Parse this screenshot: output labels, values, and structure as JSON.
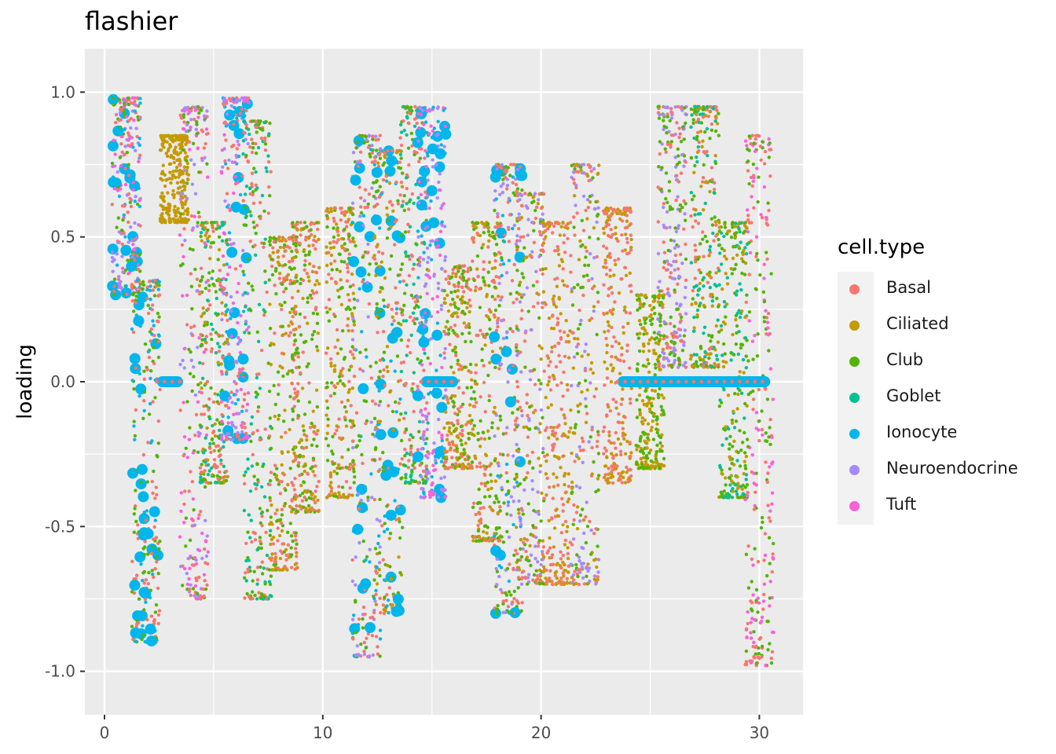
{
  "chart_data": {
    "type": "scatter",
    "title": "flashier",
    "xlabel": "",
    "ylabel": "loading",
    "xlim": [
      -0.9,
      32.0
    ],
    "ylim": [
      -1.15,
      1.15
    ],
    "x_ticks": [
      0,
      10,
      20,
      30
    ],
    "x_tick_labels": [
      "0",
      "10",
      "20",
      "30"
    ],
    "y_ticks": [
      -1.0,
      -0.5,
      0.0,
      0.5,
      1.0
    ],
    "y_tick_labels": [
      "-1.0",
      "-0.5",
      "0.0",
      "0.5",
      "1.0"
    ],
    "grid": true,
    "legend_title": "cell.type",
    "legend_position": "right",
    "series": [
      {
        "name": "Basal",
        "color": "#F8766D"
      },
      {
        "name": "Ciliated",
        "color": "#C49A00"
      },
      {
        "name": "Club",
        "color": "#53B400"
      },
      {
        "name": "Goblet",
        "color": "#00C094"
      },
      {
        "name": "Ionocyte",
        "color": "#00B6EB"
      },
      {
        "name": "Neuroendocrine",
        "color": "#A58AFF"
      },
      {
        "name": "Tuft",
        "color": "#FB61D7"
      }
    ],
    "clusters": [
      {
        "x": 1.0,
        "ymin": 0.3,
        "ymax": 0.98,
        "series": [
          0,
          2,
          4,
          5,
          6
        ]
      },
      {
        "x": 1.9,
        "ymin": -0.9,
        "ymax": 0.35,
        "series": [
          0,
          2,
          4
        ]
      },
      {
        "x": 3.2,
        "ymin": 0.55,
        "ymax": 0.85,
        "series": [
          1
        ]
      },
      {
        "x": 4.1,
        "ymin": -0.75,
        "ymax": 0.95,
        "series": [
          0,
          2,
          5,
          6
        ]
      },
      {
        "x": 5.0,
        "ymin": -0.35,
        "ymax": 0.55,
        "series": [
          0,
          1,
          2,
          3
        ]
      },
      {
        "x": 6.0,
        "ymin": -0.2,
        "ymax": 0.98,
        "series": [
          4,
          5,
          6,
          0
        ]
      },
      {
        "x": 7.0,
        "ymin": -0.75,
        "ymax": 0.9,
        "series": [
          2,
          3,
          0
        ]
      },
      {
        "x": 8.2,
        "ymin": -0.65,
        "ymax": 0.5,
        "series": [
          0,
          2,
          1
        ]
      },
      {
        "x": 9.2,
        "ymin": -0.45,
        "ymax": 0.55,
        "series": [
          2,
          0,
          1
        ]
      },
      {
        "x": 10.8,
        "ymin": -0.4,
        "ymax": 0.6,
        "series": [
          0,
          1,
          2
        ]
      },
      {
        "x": 12.0,
        "ymin": -0.95,
        "ymax": 0.85,
        "series": [
          0,
          2,
          4,
          5
        ]
      },
      {
        "x": 13.0,
        "ymin": -0.8,
        "ymax": 0.8,
        "series": [
          0,
          2,
          4,
          1
        ]
      },
      {
        "x": 14.2,
        "ymin": -0.35,
        "ymax": 0.95,
        "series": [
          2,
          3,
          0
        ]
      },
      {
        "x": 15.0,
        "ymin": -0.4,
        "ymax": 0.95,
        "series": [
          5,
          6,
          4
        ]
      },
      {
        "x": 16.2,
        "ymin": -0.3,
        "ymax": 0.4,
        "series": [
          2,
          0,
          1
        ]
      },
      {
        "x": 17.5,
        "ymin": -0.55,
        "ymax": 0.55,
        "series": [
          0,
          2,
          1
        ]
      },
      {
        "x": 18.5,
        "ymin": -0.8,
        "ymax": 0.75,
        "series": [
          0,
          4,
          5,
          2
        ]
      },
      {
        "x": 19.5,
        "ymin": -0.7,
        "ymax": 0.65,
        "series": [
          0,
          2,
          1,
          5
        ]
      },
      {
        "x": 20.7,
        "ymin": -0.7,
        "ymax": 0.55,
        "series": [
          1,
          0
        ]
      },
      {
        "x": 22.0,
        "ymin": -0.7,
        "ymax": 0.75,
        "series": [
          0,
          5,
          2,
          1
        ]
      },
      {
        "x": 23.5,
        "ymin": -0.35,
        "ymax": 0.6,
        "series": [
          0,
          1
        ]
      },
      {
        "x": 25.0,
        "ymin": -0.3,
        "ymax": 0.3,
        "series": [
          1,
          2
        ]
      },
      {
        "x": 26.0,
        "ymin": 0.05,
        "ymax": 0.95,
        "series": [
          2,
          0,
          5
        ]
      },
      {
        "x": 27.5,
        "ymin": 0.05,
        "ymax": 0.95,
        "series": [
          0,
          2,
          1,
          3
        ]
      },
      {
        "x": 28.8,
        "ymin": -0.4,
        "ymax": 0.55,
        "series": [
          1,
          2,
          3
        ]
      },
      {
        "x": 30.0,
        "ymin": -0.98,
        "ymax": 0.85,
        "series": [
          6,
          0,
          2
        ]
      }
    ],
    "zero_band_segments": [
      [
        2.4,
        3.6
      ],
      [
        14.5,
        16.2
      ],
      [
        23.5,
        30.5
      ]
    ],
    "zero_band_color": "#00B6EB"
  }
}
